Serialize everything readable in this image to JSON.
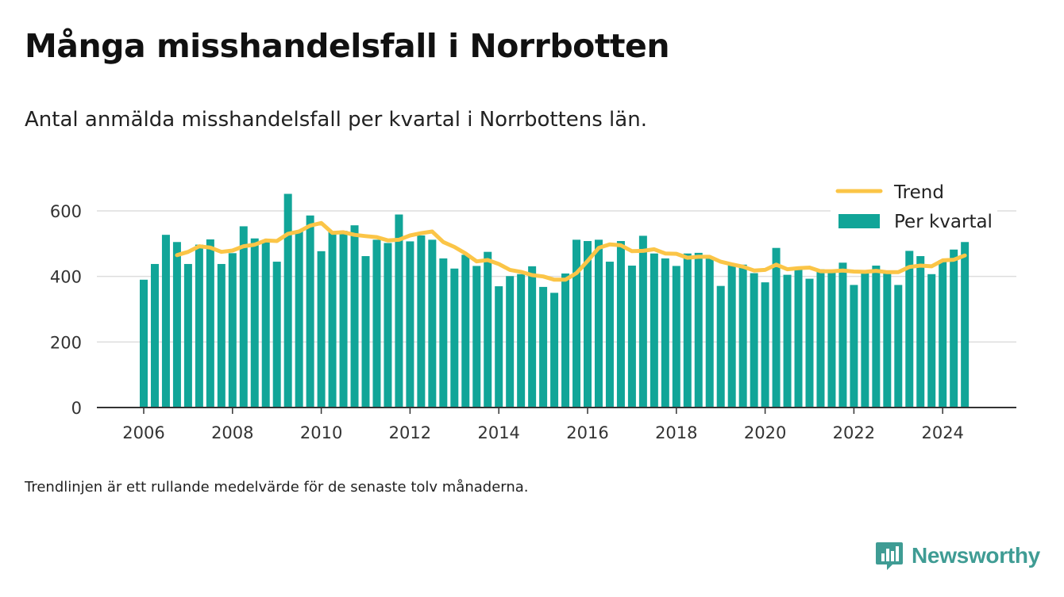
{
  "title": "Många misshandelsfall i Norrbotten",
  "subtitle": "Antal anmälda misshandelsfall per kvartal i Norrbottens län.",
  "footnote": "Trendlinjen är ett rullande medelvärde för de senaste tolv månaderna.",
  "brand": {
    "name": "Newsworthy",
    "icon": "newsworthy-logo-icon"
  },
  "colors": {
    "bar": "#11a598",
    "trend": "#fbc547",
    "grid": "#dddddd",
    "axis": "#333333"
  },
  "chart_data": {
    "type": "bar",
    "legend_position": "top-right",
    "grid": true,
    "xlim": [
      2005.0,
      2025.8
    ],
    "ylim": [
      0,
      700
    ],
    "x_ticks": [
      "2006",
      "2008",
      "2010",
      "2012",
      "2014",
      "2016",
      "2018",
      "2020",
      "2022",
      "2024"
    ],
    "y_ticks": [
      "0",
      "200",
      "400",
      "600"
    ],
    "series": [
      {
        "name": "Per kvartal",
        "type": "bar",
        "x": [
          2006.0,
          2006.25,
          2006.5,
          2006.75,
          2007.0,
          2007.25,
          2007.5,
          2007.75,
          2008.0,
          2008.25,
          2008.5,
          2008.75,
          2009.0,
          2009.25,
          2009.5,
          2009.75,
          2010.0,
          2010.25,
          2010.5,
          2010.75,
          2011.0,
          2011.25,
          2011.5,
          2011.75,
          2012.0,
          2012.25,
          2012.5,
          2012.75,
          2013.0,
          2013.25,
          2013.5,
          2013.75,
          2014.0,
          2014.25,
          2014.5,
          2014.75,
          2015.0,
          2015.25,
          2015.5,
          2015.75,
          2016.0,
          2016.25,
          2016.5,
          2016.75,
          2017.0,
          2017.25,
          2017.5,
          2017.75,
          2018.0,
          2018.25,
          2018.5,
          2018.75,
          2019.0,
          2019.25,
          2019.5,
          2019.75,
          2020.0,
          2020.25,
          2020.5,
          2020.75,
          2021.0,
          2021.25,
          2021.5,
          2021.75,
          2022.0,
          2022.25,
          2022.5,
          2022.75,
          2023.0,
          2023.25,
          2023.5,
          2023.75,
          2024.0,
          2024.25,
          2024.5
        ],
        "values": [
          390,
          438,
          527,
          505,
          438,
          497,
          513,
          438,
          471,
          553,
          516,
          509,
          445,
          652,
          537,
          586,
          477,
          536,
          539,
          556,
          462,
          512,
          502,
          589,
          507,
          525,
          512,
          455,
          424,
          466,
          432,
          475,
          370,
          401,
          407,
          431,
          368,
          350,
          409,
          512,
          508,
          512,
          445,
          508,
          433,
          524,
          470,
          455,
          432,
          470,
          472,
          460,
          371,
          437,
          436,
          410,
          382,
          487,
          405,
          422,
          393,
          422,
          418,
          442,
          374,
          418,
          433,
          416,
          374,
          478,
          462,
          407,
          450,
          482,
          505
        ]
      },
      {
        "name": "Trend",
        "type": "line",
        "x": [
          2006.75,
          2007.0,
          2007.25,
          2007.5,
          2007.75,
          2008.0,
          2008.25,
          2008.5,
          2008.75,
          2009.0,
          2009.25,
          2009.5,
          2009.75,
          2010.0,
          2010.25,
          2010.5,
          2010.75,
          2011.0,
          2011.25,
          2011.5,
          2011.75,
          2012.0,
          2012.25,
          2012.5,
          2012.75,
          2013.0,
          2013.25,
          2013.5,
          2013.75,
          2014.0,
          2014.25,
          2014.5,
          2014.75,
          2015.0,
          2015.25,
          2015.5,
          2015.75,
          2016.0,
          2016.25,
          2016.5,
          2016.75,
          2017.0,
          2017.25,
          2017.5,
          2017.75,
          2018.0,
          2018.25,
          2018.5,
          2018.75,
          2019.0,
          2019.25,
          2019.5,
          2019.75,
          2020.0,
          2020.25,
          2020.5,
          2020.75,
          2021.0,
          2021.25,
          2021.5,
          2021.75,
          2022.0,
          2022.25,
          2022.5,
          2022.75,
          2023.0,
          2023.25,
          2023.5,
          2023.75,
          2024.0,
          2024.25,
          2024.5
        ],
        "values": [
          465,
          475,
          492,
          488,
          475,
          479,
          492,
          497,
          510,
          508,
          530,
          537,
          555,
          563,
          533,
          535,
          527,
          523,
          520,
          510,
          512,
          525,
          532,
          537,
          505,
          490,
          470,
          446,
          450,
          438,
          420,
          414,
          404,
          400,
          390,
          390,
          410,
          447,
          487,
          498,
          495,
          477,
          478,
          483,
          470,
          469,
          457,
          460,
          460,
          445,
          437,
          430,
          418,
          420,
          436,
          422,
          425,
          427,
          416,
          416,
          418,
          415,
          414,
          417,
          413,
          413,
          429,
          433,
          431,
          449,
          451,
          464
        ]
      }
    ]
  }
}
